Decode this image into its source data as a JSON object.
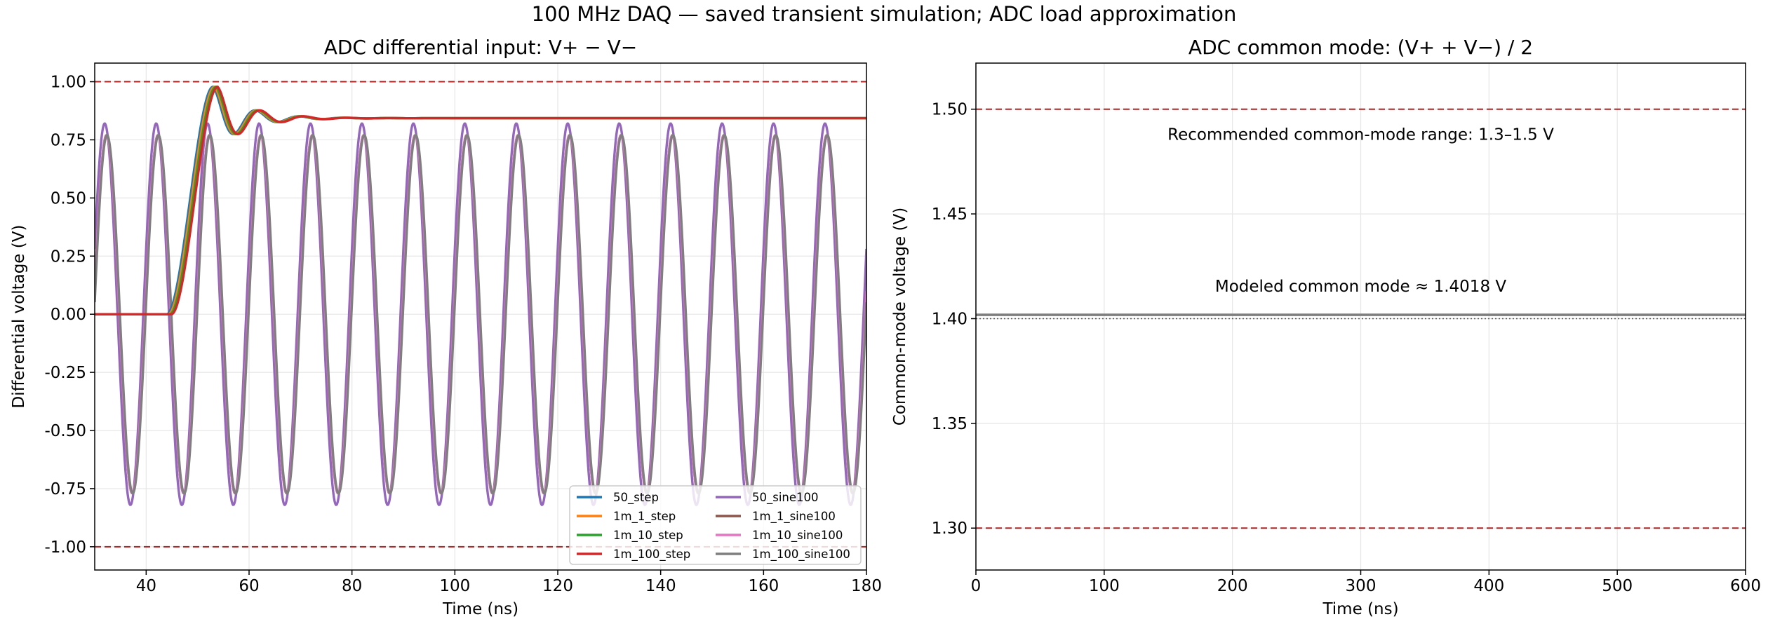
{
  "suptitle": "100 MHz DAQ — saved transient simulation; ADC load approximation",
  "colors": {
    "limit_line": "#b22222",
    "cm_ref_line": "#555555",
    "grid": "#e6e6e6",
    "legend_border": "#cccccc"
  },
  "chart_data": [
    {
      "type": "line",
      "title": "ADC differential input: V+ − V−",
      "xlabel": "Time (ns)",
      "ylabel": "Differential voltage (V)",
      "xlim": [
        30,
        180
      ],
      "ylim": [
        -1.1,
        1.08
      ],
      "xticks": [
        40,
        60,
        80,
        100,
        120,
        140,
        160,
        180
      ],
      "yticks": [
        -1.0,
        -0.75,
        -0.5,
        -0.25,
        0.0,
        0.25,
        0.5,
        0.75,
        1.0
      ],
      "grid": true,
      "legend_position": "lower-right",
      "legend_columns": 2,
      "limit_lines": [
        1.0,
        -1.0
      ],
      "step": {
        "start_ns": 44,
        "rise_ns": 9,
        "final": 0.843,
        "overshoot": 0.135,
        "damping_ns": 6,
        "ring_freq_ghz": 0.118
      },
      "sine": {
        "freq_mhz": 100,
        "period_ns": 10,
        "peak_50": 0.82,
        "peak_1m": 0.77
      },
      "series": [
        {
          "name": "50_step",
          "color": "#1f77b4",
          "kind": "step",
          "delay_ns": 0.0
        },
        {
          "name": "1m_1_step",
          "color": "#ff7f0e",
          "kind": "step",
          "delay_ns": 0.3
        },
        {
          "name": "1m_10_step",
          "color": "#2ca02c",
          "kind": "step",
          "delay_ns": 0.6
        },
        {
          "name": "1m_100_step",
          "color": "#d62728",
          "kind": "step",
          "delay_ns": 0.9
        },
        {
          "name": "50_sine100",
          "color": "#9467bd",
          "kind": "sine",
          "delay_ns": 0.0
        },
        {
          "name": "1m_1_sine100",
          "color": "#8c564b",
          "kind": "sine",
          "delay_ns": 0.35
        },
        {
          "name": "1m_10_sine100",
          "color": "#e377c2",
          "kind": "sine",
          "delay_ns": 0.35
        },
        {
          "name": "1m_100_sine100",
          "color": "#7f7f7f",
          "kind": "sine",
          "delay_ns": 0.45
        }
      ]
    },
    {
      "type": "line",
      "title": "ADC common mode: (V+ + V−) / 2",
      "xlabel": "Time (ns)",
      "ylabel": "Common-mode voltage (V)",
      "xlim": [
        0,
        600
      ],
      "ylim": [
        1.28,
        1.522
      ],
      "xticks": [
        0,
        100,
        200,
        300,
        400,
        500,
        600
      ],
      "yticks": [
        1.3,
        1.35,
        1.4,
        1.45,
        1.5
      ],
      "grid": true,
      "limit_lines": [
        1.5,
        1.3
      ],
      "reference_line": 1.4,
      "modeled_value": 1.4018,
      "series_color": "#7f7f7f",
      "annotations": [
        {
          "text": "Recommended common-mode range: 1.3–1.5 V",
          "x": 300,
          "y": 1.488
        },
        {
          "text": "Modeled common mode ≈ 1.4018 V",
          "x": 300,
          "y": 1.4155
        }
      ]
    }
  ]
}
